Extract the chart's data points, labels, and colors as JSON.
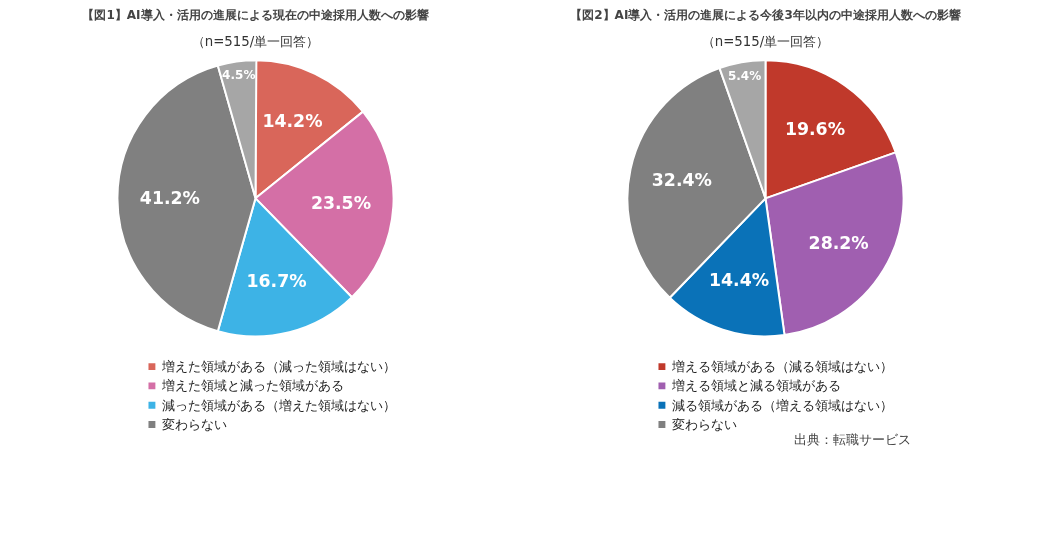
{
  "chart_data": [
    {
      "type": "pie",
      "title": "【図1】AI導入・活用の進展による現在の中途採用人数への影響",
      "subtitle": "（n=515/単一回答）",
      "categories": [
        "増えた領域がある（減った領域はない）",
        "増えた領域と減った領域がある",
        "減った領域がある（増えた領域はない）",
        "変わらない",
        null
      ],
      "values": [
        14.2,
        23.5,
        16.7,
        41.2,
        4.5
      ],
      "colors": [
        "#d9665a",
        "#d46fa6",
        "#3db3e6",
        "#808080",
        "#a6a6a6"
      ],
      "value_labels": [
        "14.2%",
        "23.5%",
        "16.7%",
        "41.2%",
        "4.5%"
      ],
      "legend": "bottom"
    },
    {
      "type": "pie",
      "title": "【図2】AI導入・活用の進展による今後3年以内の中途採用人数への影響",
      "subtitle": "（n=515/単一回答）",
      "categories": [
        "増える領域がある（減る領域はない）",
        "増える領域と減る領域がある",
        "減る領域がある（増える領域はない）",
        "変わらない",
        null
      ],
      "values": [
        19.6,
        28.2,
        14.4,
        32.4,
        5.4
      ],
      "colors": [
        "#c0392b",
        "#a05fb0",
        "#0a72b8",
        "#808080",
        "#a6a6a6"
      ],
      "value_labels": [
        "19.6%",
        "28.2%",
        "14.4%",
        "32.4%",
        "5.4%"
      ],
      "legend": "bottom",
      "annotations": [
        "出典：転職サービス"
      ]
    }
  ]
}
